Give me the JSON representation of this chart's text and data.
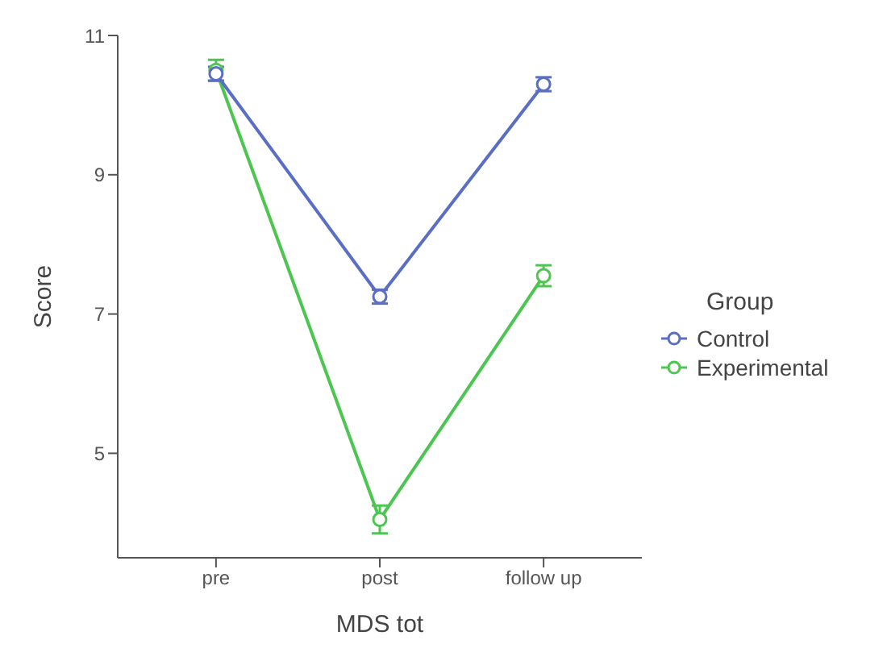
{
  "chart_data": {
    "type": "line",
    "xlabel": "MDS tot",
    "ylabel": "Score",
    "legend_title": "Group",
    "legend": "right",
    "categories": [
      "pre",
      "post",
      "follow up"
    ],
    "series": [
      {
        "name": "Control",
        "color": "#5a6fc4",
        "values": [
          10.45,
          7.25,
          10.3
        ],
        "errors": [
          0.1,
          0.1,
          0.1
        ]
      },
      {
        "name": "Experimental",
        "color": "#4cc650",
        "values": [
          10.5,
          4.05,
          7.55
        ],
        "errors": [
          0.15,
          0.2,
          0.15
        ]
      }
    ],
    "ylim": [
      3.5,
      11
    ],
    "yticks": [
      5,
      7,
      9,
      11
    ],
    "grid": false,
    "marker": "circle",
    "line_style": "solid"
  }
}
